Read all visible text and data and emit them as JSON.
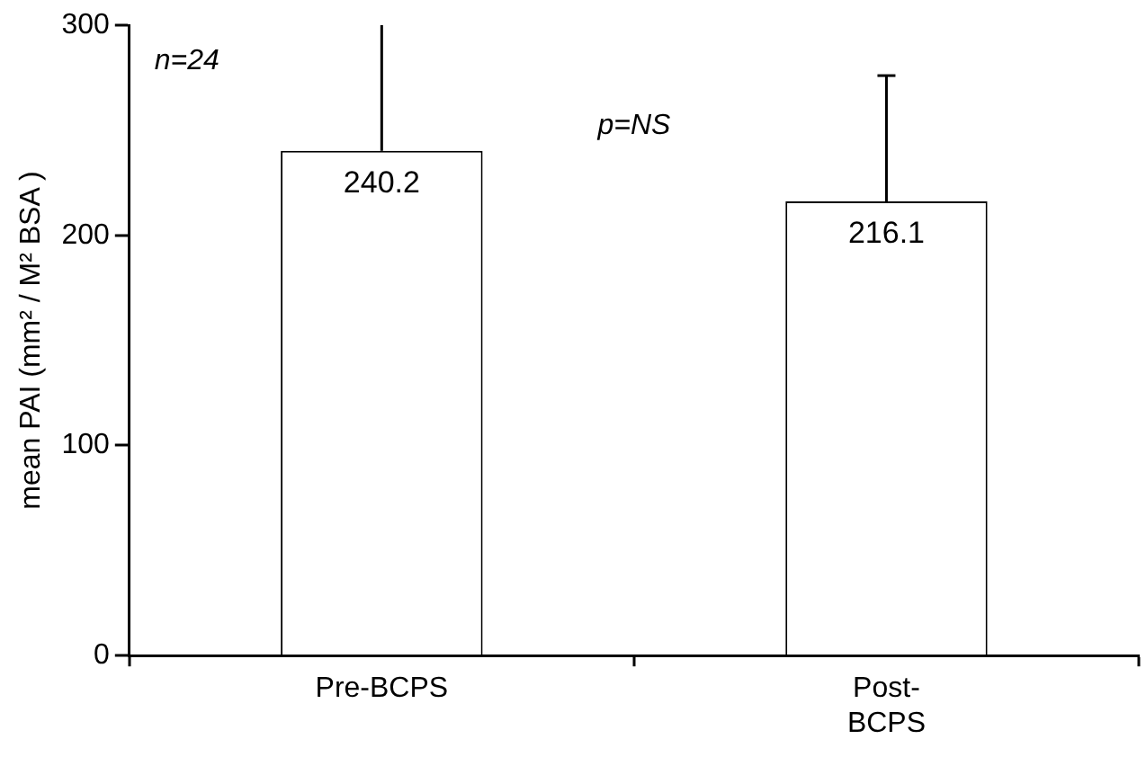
{
  "chart_data": {
    "type": "bar",
    "ylabel": "mean PAI (mm² / M² BSA )",
    "categories": [
      "Pre-BCPS",
      "Post-BCPS"
    ],
    "values": [
      240.2,
      216.1
    ],
    "color": "#ffffff",
    "errors": [
      [
        240.2,
        300
      ],
      [
        216.1,
        276
      ]
    ],
    "ylim": [
      0,
      300
    ],
    "yticks": [
      0,
      100,
      200,
      300
    ],
    "grid": false,
    "legend": false,
    "data_labels": true,
    "annotations": [
      "n=24",
      "p=NS"
    ]
  }
}
